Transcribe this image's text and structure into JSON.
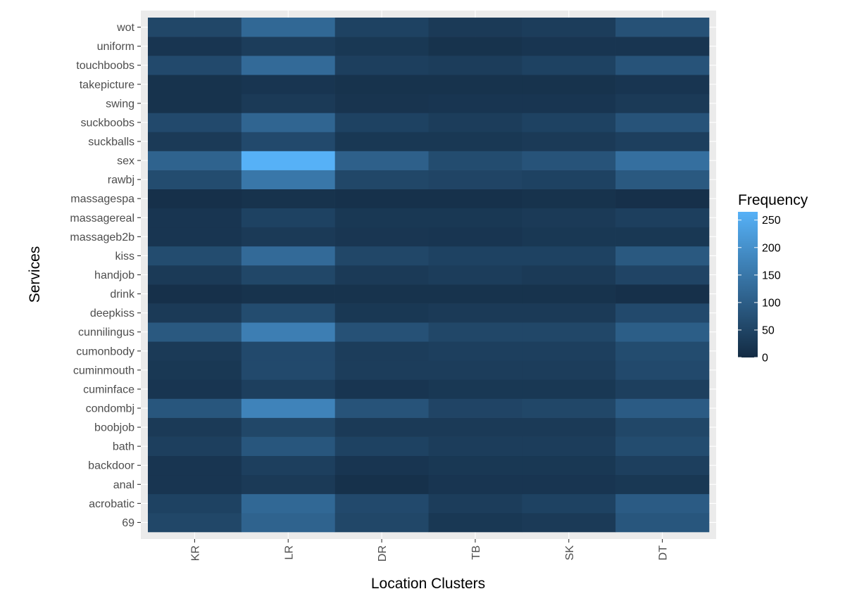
{
  "chart_data": {
    "type": "heatmap",
    "title": "",
    "xlabel": "Location Clusters",
    "ylabel": "Services",
    "x_categories": [
      "KR",
      "LR",
      "DR",
      "TB",
      "SK",
      "DT"
    ],
    "y_categories": [
      "69",
      "acrobatic",
      "anal",
      "backdoor",
      "bath",
      "boobjob",
      "condombj",
      "cuminface",
      "cuminmouth",
      "cumonbody",
      "cunnilingus",
      "deepkiss",
      "drink",
      "handjob",
      "kiss",
      "massageb2b",
      "massagereal",
      "massagespa",
      "rawbj",
      "sex",
      "suckballs",
      "suckboobs",
      "swing",
      "takepicture",
      "touchboobs",
      "uniform",
      "wot"
    ],
    "values": [
      [
        55,
        110,
        55,
        25,
        30,
        85
      ],
      [
        45,
        120,
        60,
        35,
        45,
        95
      ],
      [
        20,
        30,
        12,
        20,
        20,
        25
      ],
      [
        20,
        40,
        20,
        25,
        25,
        40
      ],
      [
        40,
        85,
        45,
        35,
        35,
        65
      ],
      [
        30,
        55,
        30,
        30,
        30,
        55
      ],
      [
        85,
        175,
        80,
        50,
        55,
        95
      ],
      [
        20,
        40,
        20,
        25,
        25,
        40
      ],
      [
        25,
        60,
        35,
        35,
        35,
        60
      ],
      [
        30,
        60,
        35,
        40,
        40,
        65
      ],
      [
        90,
        165,
        75,
        55,
        55,
        100
      ],
      [
        30,
        65,
        25,
        30,
        30,
        60
      ],
      [
        10,
        15,
        15,
        15,
        15,
        10
      ],
      [
        30,
        55,
        30,
        35,
        30,
        50
      ],
      [
        65,
        125,
        55,
        45,
        45,
        90
      ],
      [
        20,
        30,
        22,
        20,
        25,
        25
      ],
      [
        20,
        45,
        25,
        25,
        30,
        40
      ],
      [
        10,
        15,
        12,
        12,
        15,
        10
      ],
      [
        65,
        150,
        55,
        50,
        45,
        90
      ],
      [
        110,
        265,
        105,
        65,
        80,
        135
      ],
      [
        30,
        60,
        25,
        25,
        30,
        40
      ],
      [
        60,
        115,
        45,
        35,
        45,
        80
      ],
      [
        15,
        30,
        18,
        20,
        20,
        30
      ],
      [
        15,
        20,
        15,
        15,
        15,
        20
      ],
      [
        60,
        125,
        40,
        35,
        45,
        80
      ],
      [
        20,
        35,
        25,
        15,
        20,
        20
      ],
      [
        55,
        120,
        45,
        30,
        35,
        75
      ]
    ],
    "legend": {
      "title": "Frequency",
      "ticks": [
        0,
        50,
        100,
        150,
        200,
        250
      ],
      "range": [
        0,
        265
      ],
      "low_color": "#132b43",
      "high_color": "#56b1f7",
      "position": "right"
    },
    "background_color": "#ebebeb",
    "grid": true
  }
}
